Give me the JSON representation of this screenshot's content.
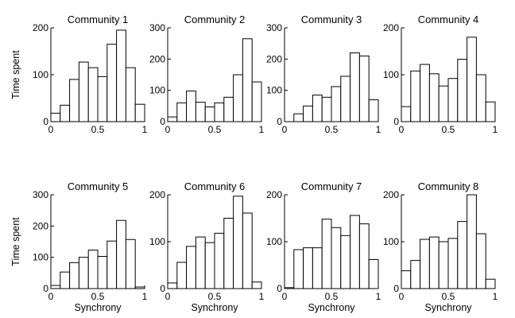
{
  "figure": {
    "type": "small-multiples histogram grid"
  },
  "chart_data": [
    {
      "type": "bar",
      "title": "Community 1",
      "xlim": [
        0,
        1
      ],
      "ylim": [
        0,
        200
      ],
      "xticks": [
        "0",
        "0.5",
        "1"
      ],
      "yticks": [
        "0",
        "100",
        "200"
      ],
      "xlabel": "",
      "ylabel": "Time spent",
      "bin_edges": [
        0,
        0.1,
        0.2,
        0.3,
        0.4,
        0.5,
        0.6,
        0.7,
        0.8,
        0.9,
        1.0
      ],
      "values": [
        18,
        35,
        90,
        127,
        115,
        96,
        165,
        195,
        115,
        37
      ]
    },
    {
      "type": "bar",
      "title": "Community 2",
      "xlim": [
        0,
        1
      ],
      "ylim": [
        0,
        300
      ],
      "xticks": [
        "0",
        "0.5",
        "1"
      ],
      "yticks": [
        "0",
        "100",
        "200",
        "300"
      ],
      "xlabel": "",
      "ylabel": "",
      "bin_edges": [
        0,
        0.1,
        0.2,
        0.3,
        0.4,
        0.5,
        0.6,
        0.7,
        0.8,
        0.9,
        1.0
      ],
      "values": [
        15,
        60,
        98,
        62,
        47,
        60,
        78,
        150,
        265,
        127
      ]
    },
    {
      "type": "bar",
      "title": "Community 3",
      "xlim": [
        0,
        1
      ],
      "ylim": [
        0,
        300
      ],
      "xticks": [
        "0",
        "0.5",
        "1"
      ],
      "yticks": [
        "0",
        "100",
        "200",
        "300"
      ],
      "xlabel": "",
      "ylabel": "",
      "bin_edges": [
        0,
        0.1,
        0.2,
        0.3,
        0.4,
        0.5,
        0.6,
        0.7,
        0.8,
        0.9,
        1.0
      ],
      "values": [
        0,
        25,
        50,
        85,
        78,
        112,
        145,
        220,
        210,
        70
      ]
    },
    {
      "type": "bar",
      "title": "Community 4",
      "xlim": [
        0,
        1
      ],
      "ylim": [
        0,
        200
      ],
      "xticks": [
        "0",
        "0.5",
        "1"
      ],
      "yticks": [
        "0",
        "100",
        "200"
      ],
      "xlabel": "",
      "ylabel": "",
      "bin_edges": [
        0,
        0.1,
        0.2,
        0.3,
        0.4,
        0.5,
        0.6,
        0.7,
        0.8,
        0.9,
        1.0
      ],
      "values": [
        32,
        108,
        122,
        102,
        76,
        92,
        133,
        180,
        100,
        42
      ]
    },
    {
      "type": "bar",
      "title": "Community 5",
      "xlim": [
        0,
        1
      ],
      "ylim": [
        0,
        300
      ],
      "xticks": [
        "0",
        "0.5",
        "1"
      ],
      "yticks": [
        "0",
        "100",
        "200",
        "300"
      ],
      "xlabel": "Synchrony",
      "ylabel": "Time spent",
      "bin_edges": [
        0,
        0.1,
        0.2,
        0.3,
        0.4,
        0.5,
        0.6,
        0.7,
        0.8,
        0.9,
        1.0
      ],
      "values": [
        10,
        53,
        83,
        100,
        123,
        103,
        152,
        218,
        157,
        5
      ]
    },
    {
      "type": "bar",
      "title": "Community 6",
      "xlim": [
        0,
        1
      ],
      "ylim": [
        0,
        200
      ],
      "xticks": [
        "0",
        "0.5",
        "1"
      ],
      "yticks": [
        "0",
        "100",
        "200"
      ],
      "xlabel": "Synchrony",
      "ylabel": "",
      "bin_edges": [
        0,
        0.1,
        0.2,
        0.3,
        0.4,
        0.5,
        0.6,
        0.7,
        0.8,
        0.9,
        1.0
      ],
      "values": [
        12,
        56,
        90,
        110,
        98,
        118,
        150,
        197,
        161,
        14
      ]
    },
    {
      "type": "bar",
      "title": "Community 7",
      "xlim": [
        0,
        1
      ],
      "ylim": [
        0,
        200
      ],
      "xticks": [
        "0",
        "0.5",
        "1"
      ],
      "yticks": [
        "0",
        "100",
        "200"
      ],
      "xlabel": "Synchrony",
      "ylabel": "",
      "bin_edges": [
        0,
        0.1,
        0.2,
        0.3,
        0.4,
        0.5,
        0.6,
        0.7,
        0.8,
        0.9,
        1.0
      ],
      "values": [
        2,
        83,
        87,
        87,
        148,
        130,
        113,
        156,
        138,
        62
      ]
    },
    {
      "type": "bar",
      "title": "Community 8",
      "xlim": [
        0,
        1
      ],
      "ylim": [
        0,
        200
      ],
      "xticks": [
        "0",
        "0.5",
        "1"
      ],
      "yticks": [
        "0",
        "100",
        "200"
      ],
      "xlabel": "Synchrony",
      "ylabel": "",
      "bin_edges": [
        0,
        0.1,
        0.2,
        0.3,
        0.4,
        0.5,
        0.6,
        0.7,
        0.8,
        0.9,
        1.0
      ],
      "values": [
        38,
        60,
        105,
        110,
        100,
        107,
        143,
        200,
        117,
        20
      ]
    }
  ]
}
